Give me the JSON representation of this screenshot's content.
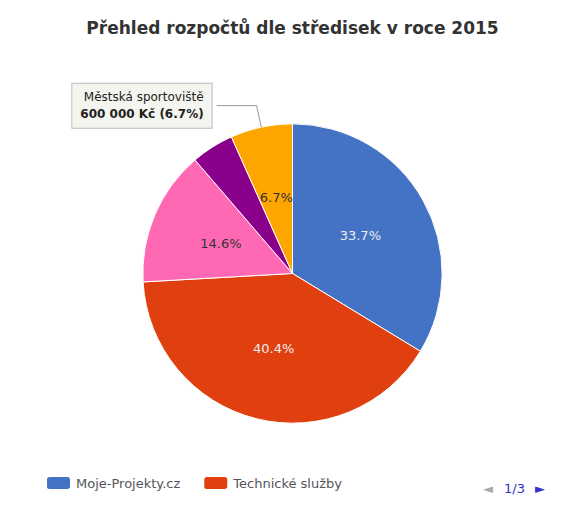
{
  "chart_data": {
    "type": "pie",
    "title": "Přehled rozpočtů dle středisek v roce 2015",
    "categories": [
      "Moje-Projekty.cz",
      "Technické služby",
      null,
      null,
      null
    ],
    "values": [
      33.7,
      40.4,
      14.6,
      4.6,
      6.7
    ],
    "value_labels": [
      "33.7%",
      "40.4%",
      "14.6%",
      null,
      "6.7%"
    ],
    "data_labels": true,
    "colors": [
      "#4472C4",
      "#E04010",
      "#FF69B4",
      "#8B008B",
      "#FFA500"
    ],
    "legend": "bottom",
    "annotations": [
      {
        "lines": [
          "Městská sportoviště",
          "600 000 Kč (6.7%)"
        ],
        "value": 6.7
      },
      {
        "text": "◄",
        "color": "#AAAAAA"
      },
      {
        "text": "1/3",
        "color": "#3333CC"
      },
      {
        "text": "►",
        "color": "#3333CC"
      }
    ]
  }
}
